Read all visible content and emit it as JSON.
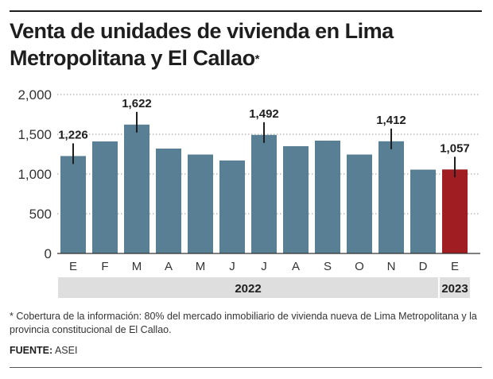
{
  "title": {
    "text": "Venta de unidades de vivienda en Lima Metropolitana y El Callao",
    "marker": "*"
  },
  "colors": {
    "bar": "#587f93",
    "bar_highlight": "#a01d22",
    "year_band": "#dedede",
    "grid": "#9a9a9a",
    "text": "#1e1e1e"
  },
  "chart_data": {
    "type": "bar",
    "categories": [
      "E",
      "F",
      "M",
      "A",
      "M",
      "J",
      "J",
      "A",
      "S",
      "O",
      "N",
      "D",
      "E"
    ],
    "values": [
      1226,
      1410,
      1622,
      1320,
      1245,
      1170,
      1492,
      1350,
      1420,
      1245,
      1412,
      1055,
      1057
    ],
    "value_labels": [
      {
        "index": 0,
        "text": "1,226"
      },
      {
        "index": 2,
        "text": "1,622"
      },
      {
        "index": 6,
        "text": "1,492"
      },
      {
        "index": 10,
        "text": "1,412"
      },
      {
        "index": 12,
        "text": "1,057"
      }
    ],
    "highlight_index": 12,
    "ylim": [
      0,
      2000
    ],
    "yticks": [
      0,
      500,
      1000,
      1500,
      2000
    ],
    "ytick_labels": [
      "0",
      "500",
      "1,000",
      "1,500",
      "2,000"
    ],
    "grid": true,
    "groups": [
      {
        "label": "2022",
        "start": 0,
        "end": 11
      },
      {
        "label": "2023",
        "start": 12,
        "end": 12
      }
    ]
  },
  "footnote": "* Cobertura de la información: 80% del mercado inmobiliario de vivienda nueva de Lima Metropolitana y la provincia constitucional de El Callao.",
  "source": {
    "label": "FUENTE:",
    "text": "ASEI"
  }
}
